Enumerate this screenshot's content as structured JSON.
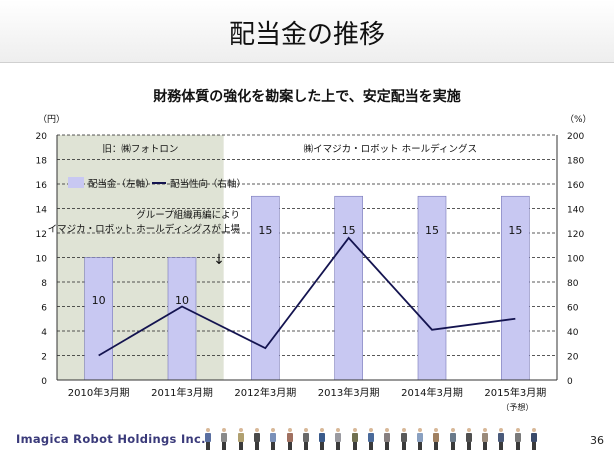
{
  "slide": {
    "title": "配当金の推移",
    "subtitle": "財務体質の強化を勘案した上で、安定配当を実施",
    "company": "Imagica Robot Holdings Inc.",
    "page_number": "36"
  },
  "chart_data": {
    "type": "bar",
    "categories": [
      "2010年3月期",
      "2011年3月期",
      "2012年3月期",
      "2013年3月期",
      "2014年3月期",
      "2015年3月期"
    ],
    "category_notes": [
      "",
      "",
      "",
      "",
      "",
      "（予想）"
    ],
    "series": [
      {
        "name": "配当金（左軸）",
        "type": "bar",
        "axis": "left",
        "values": [
          10,
          10,
          15,
          15,
          15,
          15
        ],
        "data_labels": [
          "10",
          "10",
          "15",
          "15",
          "15",
          "15"
        ],
        "color": "#c8c8f2"
      },
      {
        "name": "配当性向（右軸）",
        "type": "line",
        "axis": "right",
        "values": [
          20,
          60,
          26,
          116,
          41,
          50
        ],
        "color": "#141450"
      }
    ],
    "left_axis": {
      "unit": "（円）",
      "ylim": [
        0,
        20
      ],
      "ticks": [
        "0",
        "2",
        "4",
        "6",
        "8",
        "10",
        "12",
        "14",
        "16",
        "18",
        "20"
      ]
    },
    "right_axis": {
      "unit": "（%）",
      "ylim": [
        0,
        200
      ],
      "ticks": [
        "0",
        "20",
        "40",
        "60",
        "80",
        "100",
        "120",
        "140",
        "160",
        "180",
        "200"
      ]
    },
    "grid": "dashed horizontal",
    "legend": "top-left",
    "regions": [
      {
        "label": "旧：㈱フォトロン",
        "from": 0,
        "to": 1,
        "shaded": true,
        "color": "#dfe3d5"
      },
      {
        "label": "㈱イマジカ・ロボット ホールディングス",
        "from": 2,
        "to": 5,
        "shaded": false
      }
    ],
    "annotation": {
      "lines": [
        "グループ組織再編により",
        "イマジカ・ロボット ホールディングスが上場"
      ],
      "arrow": "↓"
    }
  },
  "colors": {
    "bar": "#c8c8f2",
    "bar_border": "#7878b8",
    "line": "#141450",
    "shade": "#dfe3d5",
    "logo": "#3a3a7a"
  }
}
